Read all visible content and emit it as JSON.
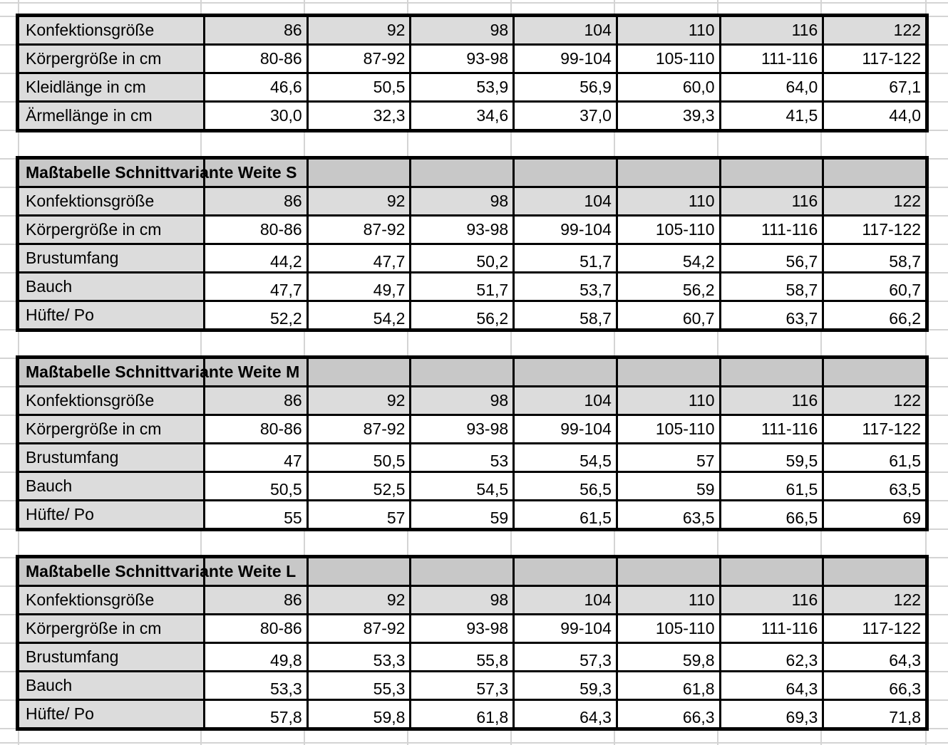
{
  "colors": {
    "title_row_bg": "#c8c8c8",
    "header_cell_bg": "#dcdcdc",
    "table_border": "#000000",
    "gridline": "#d4d4d4",
    "data_cell_bg": "#ffffff"
  },
  "tables": [
    {
      "title": null,
      "rows": [
        {
          "label": "Konfektionsgröße",
          "type": "size",
          "values": [
            "86",
            "92",
            "98",
            "104",
            "110",
            "116",
            "122"
          ]
        },
        {
          "label": "Körpergröße in cm",
          "type": "range",
          "values": [
            "80-86",
            "87-92",
            "93-98",
            "99-104",
            "105-110",
            "111-116",
            "117-122"
          ]
        },
        {
          "label": "Kleidlänge in cm",
          "type": "plain",
          "values": [
            "46,6",
            "50,5",
            "53,9",
            "56,9",
            "60,0",
            "64,0",
            "67,1"
          ]
        },
        {
          "label": "Ärmellänge in cm",
          "type": "plain",
          "values": [
            "30,0",
            "32,3",
            "34,6",
            "37,0",
            "39,3",
            "41,5",
            "44,0"
          ]
        }
      ]
    },
    {
      "title": "Maßtabelle Schnittvariante Weite S",
      "rows": [
        {
          "label": "Konfektionsgröße",
          "type": "size",
          "values": [
            "86",
            "92",
            "98",
            "104",
            "110",
            "116",
            "122"
          ]
        },
        {
          "label": "Körpergröße in cm",
          "type": "range",
          "values": [
            "80-86",
            "87-92",
            "93-98",
            "99-104",
            "105-110",
            "111-116",
            "117-122"
          ]
        },
        {
          "label": "Brustumfang",
          "type": "measure",
          "values": [
            "44,2",
            "47,7",
            "50,2",
            "51,7",
            "54,2",
            "56,7",
            "58,7"
          ]
        },
        {
          "label": "Bauch",
          "type": "measure",
          "values": [
            "47,7",
            "49,7",
            "51,7",
            "53,7",
            "56,2",
            "58,7",
            "60,7"
          ]
        },
        {
          "label": "Hüfte/ Po",
          "type": "measure",
          "values": [
            "52,2",
            "54,2",
            "56,2",
            "58,7",
            "60,7",
            "63,7",
            "66,2"
          ]
        }
      ]
    },
    {
      "title": "Maßtabelle Schnittvariante Weite M",
      "rows": [
        {
          "label": "Konfektionsgröße",
          "type": "size",
          "values": [
            "86",
            "92",
            "98",
            "104",
            "110",
            "116",
            "122"
          ]
        },
        {
          "label": "Körpergröße in cm",
          "type": "range",
          "values": [
            "80-86",
            "87-92",
            "93-98",
            "99-104",
            "105-110",
            "111-116",
            "117-122"
          ]
        },
        {
          "label": "Brustumfang",
          "type": "measure",
          "values": [
            "47",
            "50,5",
            "53",
            "54,5",
            "57",
            "59,5",
            "61,5"
          ]
        },
        {
          "label": "Bauch",
          "type": "measure",
          "values": [
            "50,5",
            "52,5",
            "54,5",
            "56,5",
            "59",
            "61,5",
            "63,5"
          ]
        },
        {
          "label": "Hüfte/ Po",
          "type": "measure",
          "values": [
            "55",
            "57",
            "59",
            "61,5",
            "63,5",
            "66,5",
            "69"
          ]
        }
      ]
    },
    {
      "title": "Maßtabelle Schnittvariante Weite L",
      "rows": [
        {
          "label": "Konfektionsgröße",
          "type": "size",
          "values": [
            "86",
            "92",
            "98",
            "104",
            "110",
            "116",
            "122"
          ]
        },
        {
          "label": "Körpergröße in cm",
          "type": "range",
          "values": [
            "80-86",
            "87-92",
            "93-98",
            "99-104",
            "105-110",
            "111-116",
            "117-122"
          ]
        },
        {
          "label": "Brustumfang",
          "type": "measure",
          "values": [
            "49,8",
            "53,3",
            "55,8",
            "57,3",
            "59,8",
            "62,3",
            "64,3"
          ]
        },
        {
          "label": "Bauch",
          "type": "measure",
          "values": [
            "53,3",
            "55,3",
            "57,3",
            "59,3",
            "61,8",
            "64,3",
            "66,3"
          ]
        },
        {
          "label": "Hüfte/ Po",
          "type": "measure",
          "values": [
            "57,8",
            "59,8",
            "61,8",
            "64,3",
            "66,3",
            "69,3",
            "71,8"
          ]
        }
      ]
    }
  ]
}
